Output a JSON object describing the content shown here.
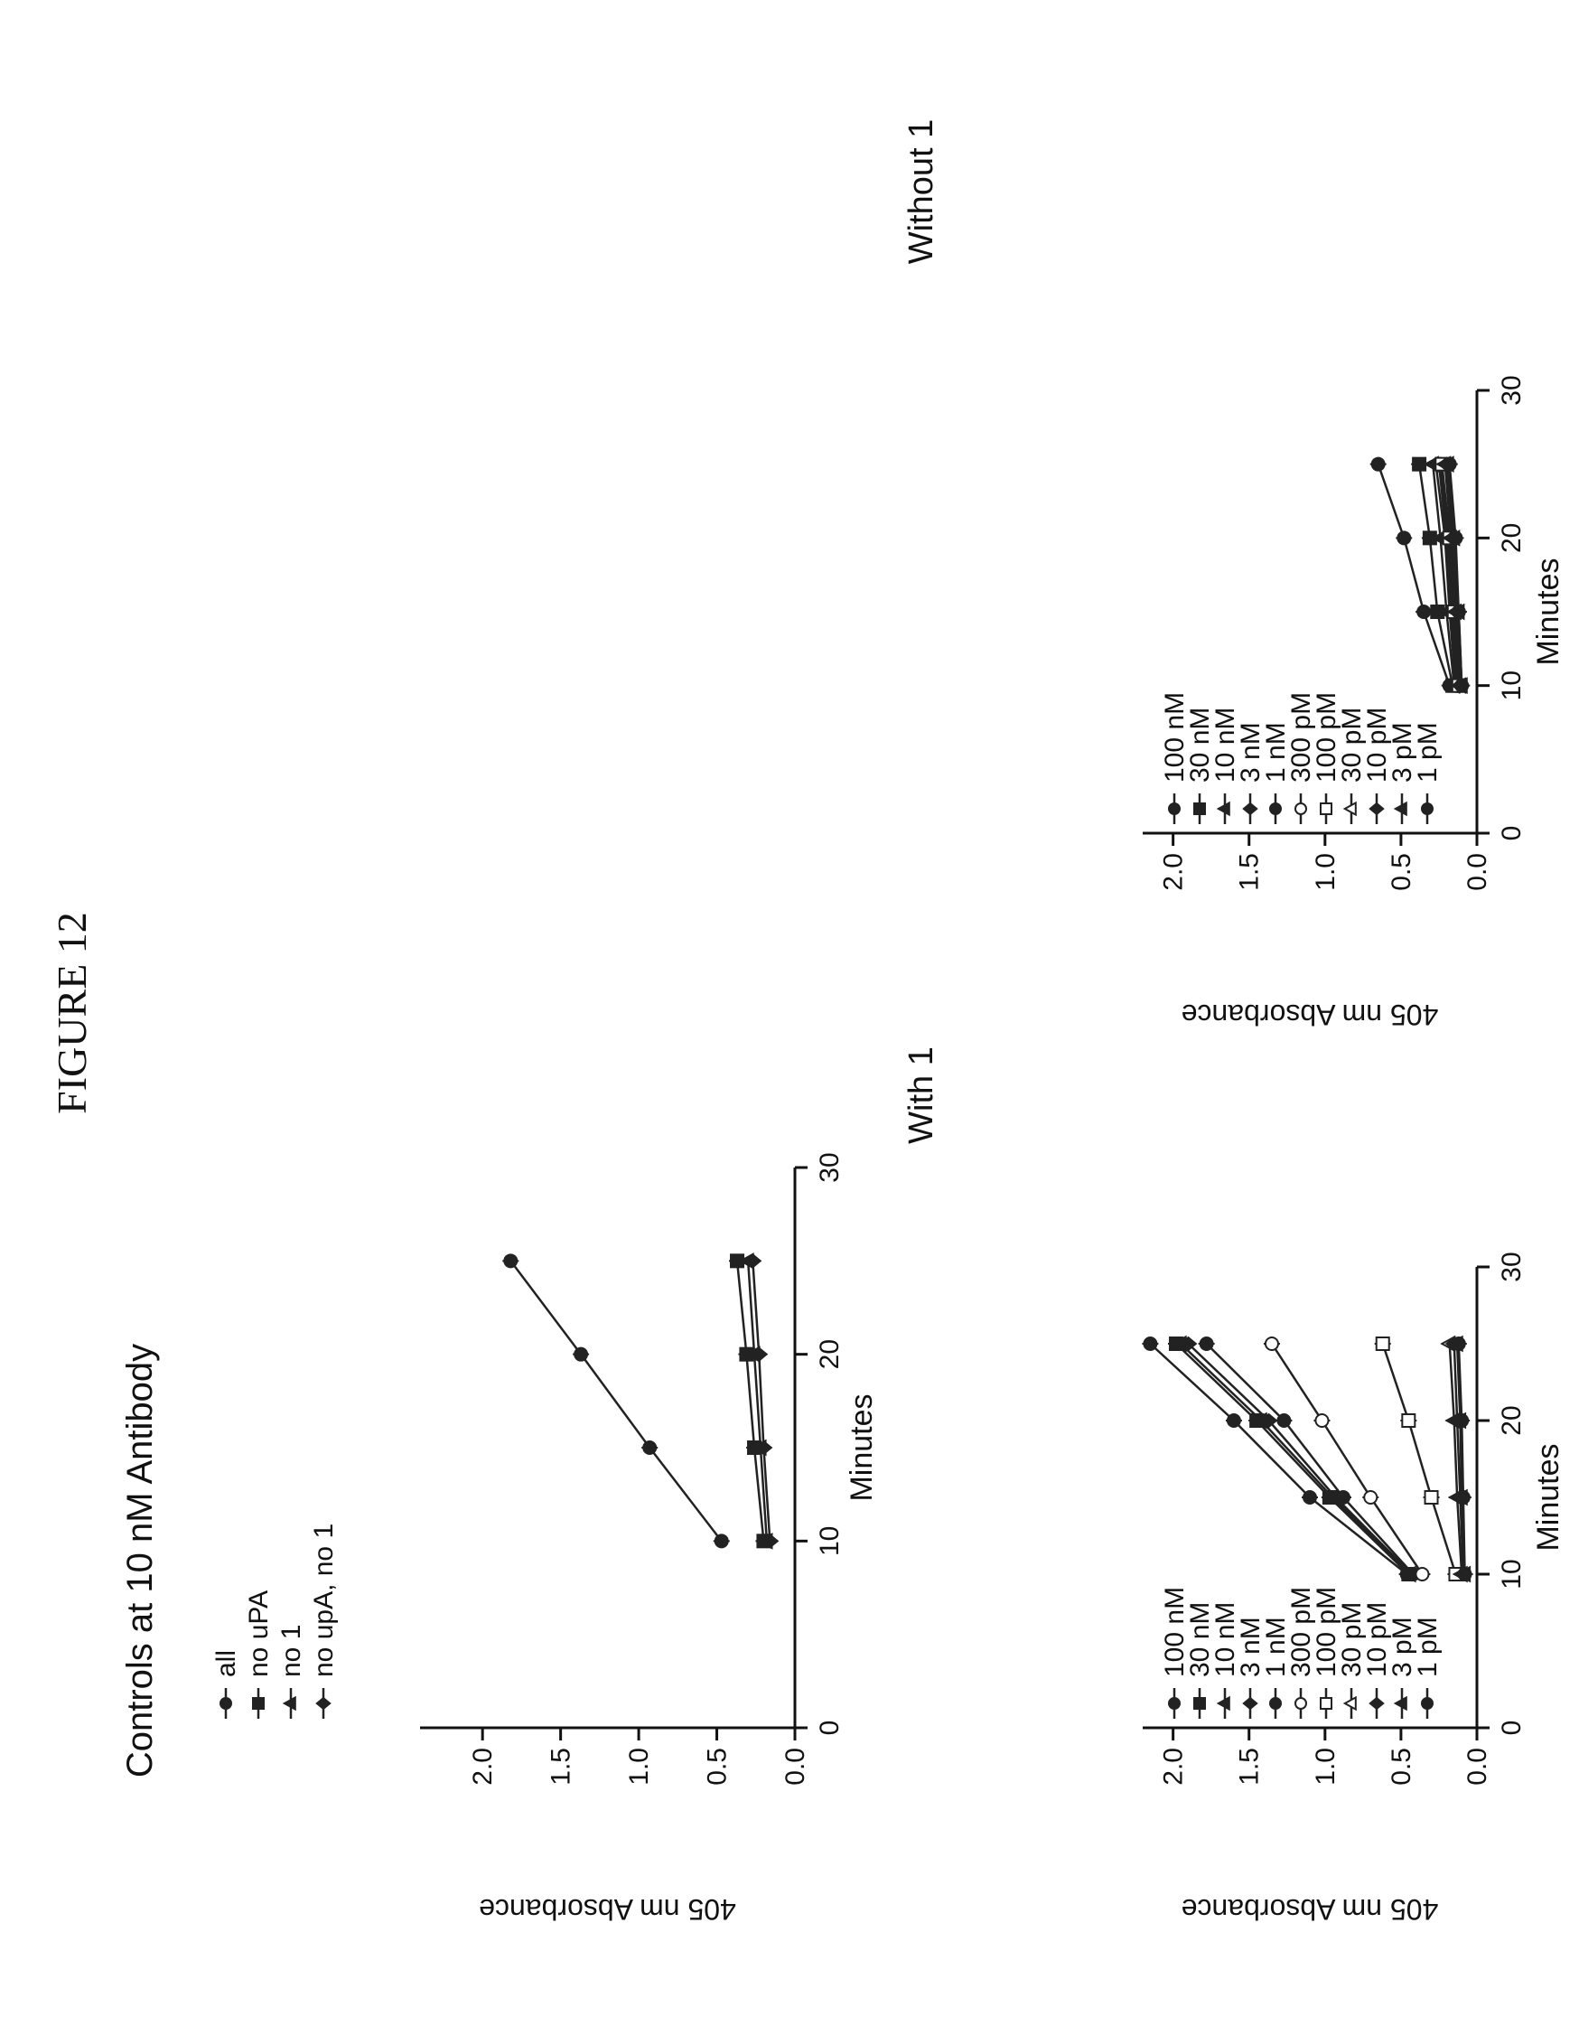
{
  "figure_label": "FIGURE 12",
  "chart_data": [
    {
      "id": "controls",
      "type": "line",
      "title": "Controls at 10 nM Antibody",
      "xlabel": "Minutes",
      "ylabel": "405 nm Absorbance",
      "xlim": [
        0,
        30
      ],
      "ylim": [
        0,
        2.4
      ],
      "xticks": [
        0,
        10,
        20,
        30
      ],
      "yticks": [
        0.0,
        0.5,
        1.0,
        1.5,
        2.0
      ],
      "x": [
        10,
        15,
        20,
        25
      ],
      "legend_position": "top-left",
      "series": [
        {
          "name": "all",
          "marker": "circle",
          "values": [
            0.47,
            0.93,
            1.37,
            1.82
          ]
        },
        {
          "name": "no uPA",
          "marker": "square",
          "values": [
            0.2,
            0.26,
            0.31,
            0.37
          ]
        },
        {
          "name": "no 1",
          "marker": "triangle",
          "values": [
            0.18,
            0.22,
            0.26,
            0.3
          ]
        },
        {
          "name": "no upA, no 1",
          "marker": "diamond",
          "values": [
            0.16,
            0.2,
            0.23,
            0.27
          ]
        }
      ]
    },
    {
      "id": "with1",
      "type": "line",
      "title": "With 1",
      "xlabel": "Minutes",
      "ylabel": "405 nm Absorbance",
      "xlim": [
        0,
        30
      ],
      "ylim": [
        0,
        2.2
      ],
      "xticks": [
        0,
        10,
        20,
        30
      ],
      "yticks": [
        0.0,
        0.5,
        1.0,
        1.5,
        2.0
      ],
      "x": [
        10,
        15,
        20,
        25
      ],
      "legend_position": "top-left",
      "series": [
        {
          "name": "100 nM",
          "marker": "circle",
          "values": [
            0.46,
            1.1,
            1.6,
            2.15
          ]
        },
        {
          "name": "30 nM",
          "marker": "square",
          "values": [
            0.45,
            0.97,
            1.45,
            1.98
          ]
        },
        {
          "name": "10 nM",
          "marker": "triangle",
          "values": [
            0.44,
            0.95,
            1.42,
            1.95
          ]
        },
        {
          "name": "3 nM",
          "marker": "diamond",
          "values": [
            0.43,
            0.93,
            1.37,
            1.9
          ]
        },
        {
          "name": "1 nM",
          "marker": "circle",
          "values": [
            0.42,
            0.88,
            1.27,
            1.78
          ]
        },
        {
          "name": "300 pM",
          "marker": "circle-open",
          "values": [
            0.36,
            0.7,
            1.02,
            1.35
          ]
        },
        {
          "name": "100 pM",
          "marker": "square-open",
          "values": [
            0.14,
            0.3,
            0.45,
            0.62
          ]
        },
        {
          "name": "30 pM",
          "marker": "triangle-open",
          "values": [
            0.1,
            0.13,
            0.15,
            0.18
          ]
        },
        {
          "name": "10 pM",
          "marker": "diamond",
          "values": [
            0.09,
            0.11,
            0.13,
            0.15
          ]
        },
        {
          "name": "3 pM",
          "marker": "triangle",
          "values": [
            0.08,
            0.1,
            0.11,
            0.13
          ]
        },
        {
          "name": "1 pM",
          "marker": "circle",
          "values": [
            0.08,
            0.09,
            0.1,
            0.12
          ]
        }
      ]
    },
    {
      "id": "without1",
      "type": "line",
      "title": "Without 1",
      "xlabel": "Minutes",
      "ylabel": "405 nm Absorbance",
      "xlim": [
        0,
        30
      ],
      "ylim": [
        0,
        2.2
      ],
      "xticks": [
        0,
        10,
        20,
        30
      ],
      "yticks": [
        0.0,
        0.5,
        1.0,
        1.5,
        2.0
      ],
      "x": [
        10,
        15,
        20,
        25
      ],
      "legend_position": "top-left",
      "series": [
        {
          "name": "100 nM",
          "marker": "circle",
          "values": [
            0.18,
            0.35,
            0.48,
            0.65
          ]
        },
        {
          "name": "30 nM",
          "marker": "square",
          "values": [
            0.16,
            0.26,
            0.31,
            0.38
          ]
        },
        {
          "name": "10 nM",
          "marker": "triangle",
          "values": [
            0.15,
            0.2,
            0.24,
            0.29
          ]
        },
        {
          "name": "3 nM",
          "marker": "diamond",
          "values": [
            0.14,
            0.18,
            0.21,
            0.27
          ]
        },
        {
          "name": "1 nM",
          "marker": "circle",
          "values": [
            0.13,
            0.17,
            0.2,
            0.25
          ]
        },
        {
          "name": "300 pM",
          "marker": "circle-open",
          "values": [
            0.12,
            0.16,
            0.19,
            0.24
          ]
        },
        {
          "name": "100 pM",
          "marker": "square-open",
          "values": [
            0.12,
            0.15,
            0.18,
            0.23
          ]
        },
        {
          "name": "30 pM",
          "marker": "triangle-open",
          "values": [
            0.11,
            0.14,
            0.17,
            0.21
          ]
        },
        {
          "name": "10 pM",
          "marker": "diamond",
          "values": [
            0.11,
            0.13,
            0.16,
            0.2
          ]
        },
        {
          "name": "3 pM",
          "marker": "triangle",
          "values": [
            0.1,
            0.12,
            0.15,
            0.19
          ]
        },
        {
          "name": "1 pM",
          "marker": "circle",
          "values": [
            0.1,
            0.12,
            0.14,
            0.18
          ]
        }
      ]
    }
  ]
}
